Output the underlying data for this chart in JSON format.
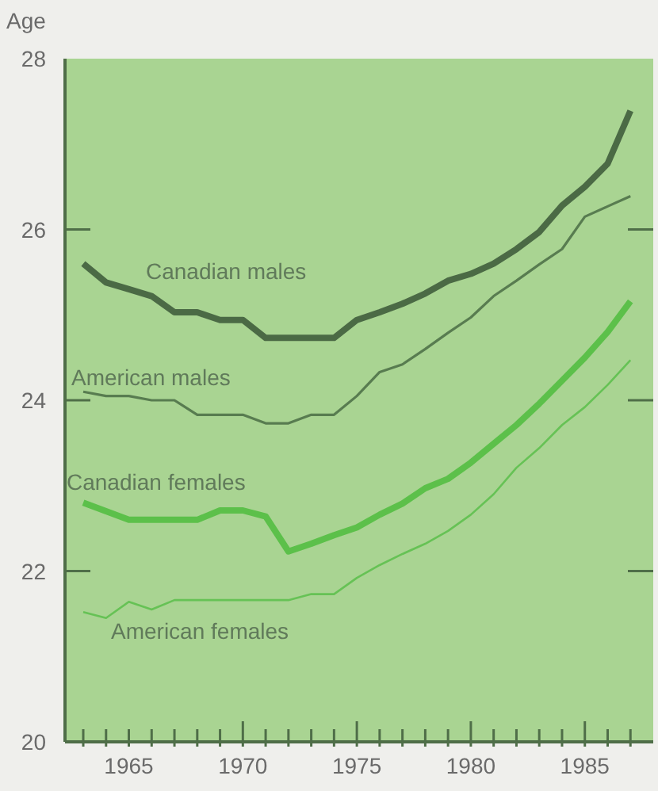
{
  "chart_data": {
    "type": "line",
    "ylabel": "Age",
    "x": [
      1963,
      1964,
      1965,
      1966,
      1967,
      1968,
      1969,
      1970,
      1971,
      1972,
      1973,
      1974,
      1975,
      1976,
      1977,
      1978,
      1979,
      1980,
      1981,
      1982,
      1983,
      1984,
      1985,
      1986,
      1987
    ],
    "series": [
      {
        "name": "Canadian males",
        "color": "#4b6a45",
        "values": [
          25.6,
          25.38,
          25.3,
          25.22,
          25.03,
          25.03,
          24.94,
          24.94,
          24.73,
          24.73,
          24.73,
          24.73,
          24.94,
          25.03,
          25.13,
          25.25,
          25.4,
          25.48,
          25.6,
          25.77,
          25.97,
          26.28,
          26.5,
          26.77,
          27.39
        ]
      },
      {
        "name": "American males",
        "color": "#587c50",
        "values": [
          24.1,
          24.05,
          24.05,
          24.0,
          24.0,
          23.83,
          23.83,
          23.83,
          23.73,
          23.73,
          23.83,
          23.83,
          24.05,
          24.33,
          24.42,
          24.6,
          24.79,
          24.97,
          25.22,
          25.4,
          25.59,
          25.77,
          26.15,
          26.27,
          26.39
        ]
      },
      {
        "name": "Canadian females",
        "color": "#5cc04a",
        "values": [
          22.8,
          22.7,
          22.6,
          22.6,
          22.6,
          22.6,
          22.71,
          22.71,
          22.64,
          22.23,
          22.32,
          22.42,
          22.51,
          22.66,
          22.79,
          22.97,
          23.08,
          23.27,
          23.49,
          23.71,
          23.96,
          24.23,
          24.5,
          24.8,
          25.16
        ]
      },
      {
        "name": "American females",
        "color": "#66c255",
        "values": [
          21.52,
          21.45,
          21.64,
          21.55,
          21.66,
          21.66,
          21.66,
          21.66,
          21.66,
          21.66,
          21.73,
          21.73,
          21.92,
          22.07,
          22.2,
          22.32,
          22.47,
          22.66,
          22.9,
          23.21,
          23.44,
          23.71,
          23.92,
          24.18,
          24.47
        ]
      }
    ],
    "xlim": [
      1962.2,
      1988
    ],
    "xticks": [
      {
        "value": 1963,
        "label": null
      },
      {
        "value": 1964,
        "label": null
      },
      1965,
      {
        "value": 1966,
        "label": null
      },
      {
        "value": 1967,
        "label": null
      },
      {
        "value": 1968,
        "label": null
      },
      {
        "value": 1969,
        "label": null
      },
      1970,
      {
        "value": 1971,
        "label": null
      },
      {
        "value": 1972,
        "label": null
      },
      {
        "value": 1973,
        "label": null
      },
      {
        "value": 1974,
        "label": null
      },
      1975,
      {
        "value": 1976,
        "label": null
      },
      {
        "value": 1977,
        "label": null
      },
      {
        "value": 1978,
        "label": null
      },
      {
        "value": 1979,
        "label": null
      },
      1980,
      {
        "value": 1981,
        "label": null
      },
      {
        "value": 1982,
        "label": null
      },
      {
        "value": 1983,
        "label": null
      },
      {
        "value": 1984,
        "label": null
      },
      1985,
      {
        "value": 1986,
        "label": null
      },
      {
        "value": 1987,
        "label": null
      }
    ],
    "ylim": [
      20,
      28
    ],
    "yticks": [
      20,
      22,
      24,
      26,
      28
    ],
    "grid": false,
    "marker": "none",
    "line_style": "solid"
  }
}
